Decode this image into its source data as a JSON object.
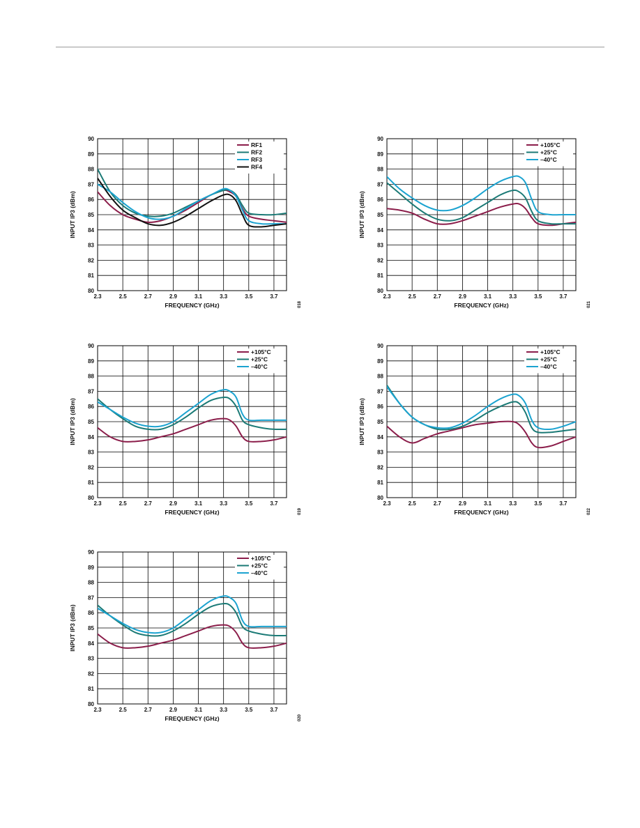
{
  "colors": {
    "RF1": "#8b1d4a",
    "RF2": "#1b7a76",
    "RF3": "#1ba3d0",
    "RF4": "#111111",
    "hot": "#8b1d4a",
    "room": "#1b7a76",
    "cold": "#1ba3d0"
  },
  "chart_data": [
    {
      "type": "line",
      "xlabel": "FREQUENCY (GHz)",
      "ylabel": "INPUT IP3 (dBm)",
      "xticks": [
        2.3,
        2.5,
        2.7,
        2.9,
        3.1,
        3.3,
        3.5,
        3.7
      ],
      "xtick_labels": [
        "2.3",
        "2.5",
        "2.7",
        "2.9",
        "3.1",
        "3.3",
        "3.5",
        "3.7"
      ],
      "yticks": [
        80,
        81,
        82,
        83,
        84,
        85,
        86,
        87,
        88,
        89,
        90
      ],
      "xlim": [
        2.3,
        3.8
      ],
      "ylim": [
        80,
        90
      ],
      "grid": true,
      "legend_position": "top-right",
      "figure_id": "018",
      "x": [
        2.3,
        2.4,
        2.5,
        2.6,
        2.7,
        2.8,
        2.9,
        3.0,
        3.1,
        3.2,
        3.3,
        3.35,
        3.4,
        3.45,
        3.5,
        3.6,
        3.7,
        3.8
      ],
      "series": [
        {
          "name": "RF1",
          "color_key": "RF1",
          "values": [
            86.5,
            85.6,
            85.0,
            84.7,
            84.5,
            84.6,
            84.9,
            85.3,
            85.8,
            86.3,
            86.6,
            86.5,
            86.2,
            85.4,
            84.9,
            84.7,
            84.6,
            84.5
          ]
        },
        {
          "name": "RF2",
          "color_key": "RF2",
          "values": [
            88.0,
            86.5,
            85.6,
            85.1,
            84.9,
            84.9,
            85.1,
            85.5,
            85.9,
            86.3,
            86.6,
            86.6,
            86.3,
            85.6,
            85.1,
            85.0,
            85.0,
            85.1
          ]
        },
        {
          "name": "RF3",
          "color_key": "RF3",
          "values": [
            87.0,
            86.5,
            85.8,
            85.2,
            84.8,
            84.7,
            84.9,
            85.4,
            85.9,
            86.3,
            86.7,
            86.6,
            86.2,
            85.3,
            84.6,
            84.4,
            84.4,
            84.4
          ]
        },
        {
          "name": "RF4",
          "color_key": "RF4",
          "values": [
            87.4,
            86.2,
            85.3,
            84.8,
            84.4,
            84.3,
            84.5,
            84.9,
            85.4,
            85.9,
            86.3,
            86.3,
            85.9,
            85.0,
            84.3,
            84.2,
            84.3,
            84.4
          ]
        }
      ]
    },
    {
      "type": "line",
      "xlabel": "FREQUENCY (GHz)",
      "ylabel": "INPUT IP3 (dBm)",
      "xticks": [
        2.3,
        2.5,
        2.7,
        2.9,
        3.1,
        3.3,
        3.5,
        3.7
      ],
      "xtick_labels": [
        "2.3",
        "2.5",
        "2.7",
        "2.9",
        "3.1",
        "3.3",
        "3.5",
        "3.7"
      ],
      "yticks": [
        80,
        81,
        82,
        83,
        84,
        85,
        86,
        87,
        88,
        89,
        90
      ],
      "xlim": [
        2.3,
        3.8
      ],
      "ylim": [
        80,
        90
      ],
      "grid": true,
      "legend_position": "top-right",
      "figure_id": "021",
      "x": [
        2.3,
        2.4,
        2.5,
        2.6,
        2.7,
        2.8,
        2.9,
        3.0,
        3.1,
        3.2,
        3.3,
        3.35,
        3.4,
        3.45,
        3.5,
        3.6,
        3.7,
        3.8
      ],
      "series": [
        {
          "name": "+105°C",
          "color_key": "hot",
          "values": [
            85.4,
            85.3,
            85.1,
            84.7,
            84.4,
            84.4,
            84.6,
            84.9,
            85.2,
            85.5,
            85.7,
            85.7,
            85.4,
            84.8,
            84.4,
            84.3,
            84.4,
            84.5
          ]
        },
        {
          "name": "+25°C",
          "color_key": "room",
          "values": [
            87.1,
            86.4,
            85.7,
            85.1,
            84.7,
            84.6,
            84.8,
            85.3,
            85.8,
            86.3,
            86.6,
            86.5,
            86.1,
            85.2,
            84.6,
            84.4,
            84.4,
            84.4
          ]
        },
        {
          "name": "–40°C",
          "color_key": "cold",
          "values": [
            87.5,
            86.7,
            86.1,
            85.6,
            85.3,
            85.3,
            85.6,
            86.1,
            86.7,
            87.2,
            87.5,
            87.5,
            87.1,
            86.0,
            85.2,
            85.0,
            85.0,
            85.0
          ]
        }
      ]
    },
    {
      "type": "line",
      "xlabel": "FREQUENCY (GHz)",
      "ylabel": "INPUT IP3 (dBm)",
      "xticks": [
        2.3,
        2.5,
        2.7,
        2.9,
        3.1,
        3.3,
        3.5,
        3.7
      ],
      "xtick_labels": [
        "2.3",
        "2.5",
        "2.7",
        "2.9",
        "3.1",
        "3.3",
        "3.5",
        "3.7"
      ],
      "yticks": [
        80,
        81,
        82,
        83,
        84,
        85,
        86,
        87,
        88,
        89,
        90
      ],
      "xlim": [
        2.3,
        3.8
      ],
      "ylim": [
        80,
        90
      ],
      "grid": true,
      "legend_position": "top-right",
      "figure_id": "019",
      "x": [
        2.3,
        2.4,
        2.5,
        2.6,
        2.7,
        2.8,
        2.9,
        3.0,
        3.1,
        3.2,
        3.3,
        3.35,
        3.4,
        3.45,
        3.5,
        3.6,
        3.7,
        3.8
      ],
      "series": [
        {
          "name": "+105°C",
          "color_key": "hot",
          "values": [
            84.6,
            84.0,
            83.7,
            83.7,
            83.8,
            84.0,
            84.2,
            84.5,
            84.8,
            85.1,
            85.2,
            85.1,
            84.7,
            84.0,
            83.7,
            83.7,
            83.8,
            84.0
          ]
        },
        {
          "name": "+25°C",
          "color_key": "room",
          "values": [
            86.5,
            85.8,
            85.2,
            84.7,
            84.5,
            84.5,
            84.8,
            85.3,
            85.9,
            86.4,
            86.6,
            86.5,
            86.0,
            85.1,
            84.8,
            84.6,
            84.5,
            84.5
          ]
        },
        {
          "name": "–40°C",
          "color_key": "cold",
          "values": [
            86.3,
            85.8,
            85.3,
            84.9,
            84.7,
            84.7,
            85.0,
            85.6,
            86.2,
            86.8,
            87.1,
            87.0,
            86.6,
            85.5,
            85.1,
            85.1,
            85.1,
            85.1
          ]
        }
      ]
    },
    {
      "type": "line",
      "xlabel": "FREQUENCY (GHz)",
      "ylabel": "INPUT IP3 (dBm)",
      "xticks": [
        2.3,
        2.5,
        2.7,
        2.9,
        3.1,
        3.3,
        3.5,
        3.7
      ],
      "xtick_labels": [
        "2.3",
        "2.5",
        "2.7",
        "2.9",
        "3.1",
        "3.3",
        "3.5",
        "3.7"
      ],
      "yticks": [
        80,
        81,
        82,
        83,
        84,
        85,
        86,
        87,
        88,
        89,
        90
      ],
      "xlim": [
        2.3,
        3.8
      ],
      "ylim": [
        80,
        90
      ],
      "grid": true,
      "legend_position": "top-right",
      "figure_id": "022",
      "x": [
        2.3,
        2.4,
        2.5,
        2.6,
        2.7,
        2.8,
        2.9,
        3.0,
        3.1,
        3.2,
        3.3,
        3.35,
        3.4,
        3.45,
        3.5,
        3.6,
        3.7,
        3.8
      ],
      "series": [
        {
          "name": "+105°C",
          "color_key": "hot",
          "values": [
            84.7,
            84.0,
            83.6,
            83.9,
            84.2,
            84.4,
            84.6,
            84.8,
            84.9,
            85.0,
            85.0,
            84.8,
            84.3,
            83.6,
            83.3,
            83.4,
            83.7,
            84.0
          ]
        },
        {
          "name": "+25°C",
          "color_key": "room",
          "values": [
            87.4,
            86.2,
            85.3,
            84.8,
            84.5,
            84.5,
            84.7,
            85.1,
            85.6,
            86.0,
            86.3,
            86.2,
            85.6,
            84.6,
            84.3,
            84.3,
            84.4,
            84.5
          ]
        },
        {
          "name": "–40°C",
          "color_key": "cold",
          "values": [
            87.3,
            86.2,
            85.3,
            84.8,
            84.6,
            84.6,
            84.9,
            85.4,
            86.0,
            86.5,
            86.8,
            86.7,
            86.2,
            85.1,
            84.6,
            84.5,
            84.7,
            85.0
          ]
        }
      ]
    },
    {
      "type": "line",
      "xlabel": "FREQUENCY (GHz)",
      "ylabel": "INPUT IP3 (dBm)",
      "xticks": [
        2.3,
        2.5,
        2.7,
        2.9,
        3.1,
        3.3,
        3.5,
        3.7
      ],
      "xtick_labels": [
        "2.3",
        "2.5",
        "2.7",
        "2.9",
        "3.1",
        "3.3",
        "3.5",
        "3.7"
      ],
      "yticks": [
        80,
        81,
        82,
        83,
        84,
        85,
        86,
        87,
        88,
        89,
        90
      ],
      "xlim": [
        2.3,
        3.8
      ],
      "ylim": [
        80,
        90
      ],
      "grid": true,
      "legend_position": "top-right",
      "figure_id": "020",
      "x": [
        2.3,
        2.4,
        2.5,
        2.6,
        2.7,
        2.8,
        2.9,
        3.0,
        3.1,
        3.2,
        3.3,
        3.35,
        3.4,
        3.45,
        3.5,
        3.6,
        3.7,
        3.8
      ],
      "series": [
        {
          "name": "+105°C",
          "color_key": "hot",
          "values": [
            84.6,
            84.0,
            83.7,
            83.7,
            83.8,
            84.0,
            84.2,
            84.5,
            84.8,
            85.1,
            85.2,
            85.1,
            84.7,
            84.0,
            83.7,
            83.7,
            83.8,
            84.0
          ]
        },
        {
          "name": "+25°C",
          "color_key": "room",
          "values": [
            86.5,
            85.8,
            85.2,
            84.7,
            84.5,
            84.5,
            84.8,
            85.3,
            85.9,
            86.4,
            86.6,
            86.5,
            86.0,
            85.1,
            84.8,
            84.6,
            84.5,
            84.5
          ]
        },
        {
          "name": "–40°C",
          "color_key": "cold",
          "values": [
            86.3,
            85.8,
            85.3,
            84.9,
            84.7,
            84.7,
            85.0,
            85.6,
            86.2,
            86.8,
            87.1,
            87.0,
            86.6,
            85.5,
            85.1,
            85.1,
            85.1,
            85.1
          ]
        }
      ]
    }
  ]
}
